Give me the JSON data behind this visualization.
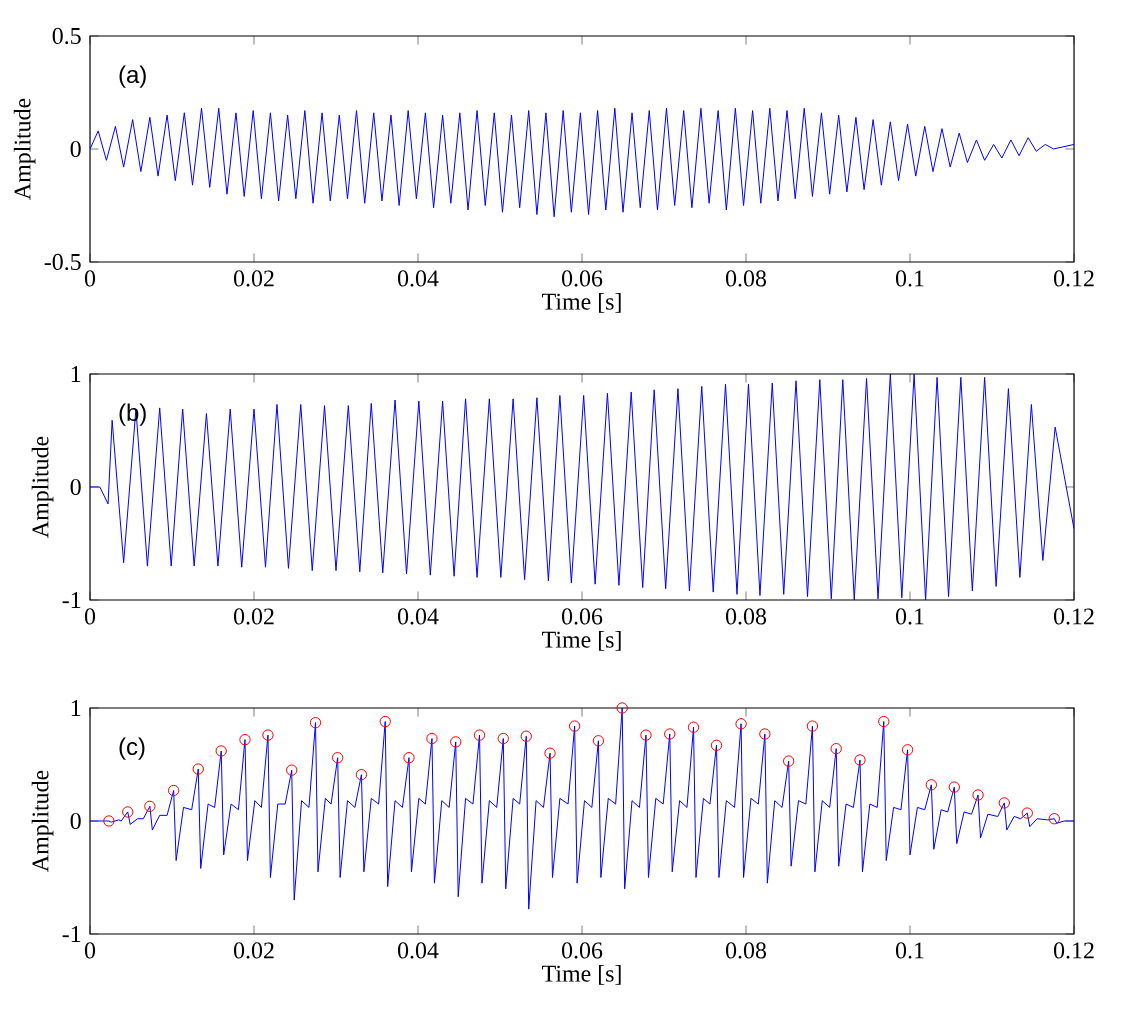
{
  "chart_data": [
    {
      "type": "line",
      "xlabel": "Time [s]",
      "ylabel": "Amplitude",
      "annotations": [
        "(a)"
      ],
      "xlim": [
        0,
        0.12
      ],
      "xticks": [
        0,
        0.02,
        0.04,
        0.06,
        0.08,
        0.1,
        0.12
      ],
      "ylim": [
        -0.5,
        0.5
      ],
      "yticks": [
        -0.5,
        0,
        0.5
      ],
      "series": [
        {
          "color": "#0000ff",
          "x": [
            0,
            0.001,
            0.002,
            0.0031,
            0.0041,
            0.0052,
            0.0062,
            0.0073,
            0.0083,
            0.0094,
            0.0104,
            0.0115,
            0.0125,
            0.0136,
            0.0146,
            0.0157,
            0.0167,
            0.0178,
            0.0188,
            0.0199,
            0.0209,
            0.022,
            0.023,
            0.0241,
            0.0251,
            0.0262,
            0.0272,
            0.0283,
            0.0293,
            0.0304,
            0.0314,
            0.0325,
            0.0335,
            0.0346,
            0.0356,
            0.0367,
            0.0377,
            0.0388,
            0.0398,
            0.0409,
            0.0419,
            0.043,
            0.044,
            0.0451,
            0.0461,
            0.0472,
            0.0482,
            0.0493,
            0.0503,
            0.0514,
            0.0524,
            0.0535,
            0.0545,
            0.0556,
            0.0566,
            0.0577,
            0.0587,
            0.0598,
            0.0608,
            0.0619,
            0.0629,
            0.064,
            0.065,
            0.0661,
            0.0671,
            0.0682,
            0.0692,
            0.0703,
            0.0713,
            0.0724,
            0.0734,
            0.0745,
            0.0755,
            0.0766,
            0.0776,
            0.0787,
            0.0797,
            0.0808,
            0.0818,
            0.0829,
            0.0839,
            0.085,
            0.086,
            0.0871,
            0.0881,
            0.0892,
            0.0902,
            0.0913,
            0.0923,
            0.0934,
            0.0944,
            0.0955,
            0.0965,
            0.0976,
            0.0986,
            0.0997,
            0.1007,
            0.1018,
            0.1028,
            0.1039,
            0.1049,
            0.106,
            0.107,
            0.1081,
            0.1091,
            0.1102,
            0.1112,
            0.1123,
            0.1133,
            0.1144,
            0.1154,
            0.1165,
            0.1175,
            0.12
          ],
          "values": [
            0,
            0.08,
            -0.05,
            0.1,
            -0.08,
            0.13,
            -0.1,
            0.14,
            -0.12,
            0.15,
            -0.14,
            0.16,
            -0.16,
            0.18,
            -0.17,
            0.18,
            -0.2,
            0.16,
            -0.21,
            0.17,
            -0.22,
            0.16,
            -0.23,
            0.15,
            -0.22,
            0.17,
            -0.24,
            0.16,
            -0.23,
            0.15,
            -0.22,
            0.17,
            -0.24,
            0.16,
            -0.23,
            0.15,
            -0.25,
            0.17,
            -0.22,
            0.16,
            -0.26,
            0.15,
            -0.24,
            0.16,
            -0.27,
            0.17,
            -0.25,
            0.16,
            -0.28,
            0.15,
            -0.26,
            0.17,
            -0.29,
            0.16,
            -0.3,
            0.17,
            -0.28,
            0.16,
            -0.29,
            0.17,
            -0.27,
            0.18,
            -0.28,
            0.16,
            -0.26,
            0.17,
            -0.27,
            0.18,
            -0.25,
            0.17,
            -0.26,
            0.18,
            -0.24,
            0.17,
            -0.27,
            0.18,
            -0.25,
            0.17,
            -0.24,
            0.18,
            -0.23,
            0.17,
            -0.22,
            0.18,
            -0.21,
            0.16,
            -0.2,
            0.15,
            -0.19,
            0.14,
            -0.18,
            0.13,
            -0.16,
            0.12,
            -0.14,
            0.11,
            -0.12,
            0.1,
            -0.1,
            0.09,
            -0.08,
            0.07,
            -0.06,
            0.04,
            -0.05,
            0.02,
            -0.04,
            0.04,
            -0.03,
            0.05,
            -0.01,
            0.02,
            0.0,
            0.02
          ]
        }
      ]
    },
    {
      "type": "line",
      "xlabel": "Time [s]",
      "ylabel": "Amplitude",
      "annotations": [
        "(b)"
      ],
      "xlim": [
        0,
        0.12
      ],
      "xticks": [
        0,
        0.02,
        0.04,
        0.06,
        0.08,
        0.1,
        0.12
      ],
      "ylim": [
        -1,
        1
      ],
      "yticks": [
        -1,
        0,
        1
      ],
      "series": [
        {
          "color": "#0000ff",
          "x": [
            0,
            0.0012,
            0.0022,
            0.0027,
            0.0041,
            0.0056,
            0.007,
            0.0085,
            0.0099,
            0.0113,
            0.0127,
            0.0142,
            0.0156,
            0.0171,
            0.0185,
            0.02,
            0.0214,
            0.0228,
            0.0242,
            0.0257,
            0.0271,
            0.0286,
            0.03,
            0.0315,
            0.0329,
            0.0343,
            0.0357,
            0.0372,
            0.0386,
            0.0401,
            0.0415,
            0.043,
            0.0444,
            0.0458,
            0.0472,
            0.0487,
            0.0501,
            0.0516,
            0.053,
            0.0545,
            0.0559,
            0.0573,
            0.0587,
            0.0602,
            0.0616,
            0.0631,
            0.0645,
            0.066,
            0.0674,
            0.0688,
            0.0702,
            0.0717,
            0.0731,
            0.0746,
            0.076,
            0.0775,
            0.0789,
            0.0803,
            0.0817,
            0.0832,
            0.0846,
            0.0861,
            0.0875,
            0.089,
            0.0904,
            0.0918,
            0.0932,
            0.0947,
            0.0961,
            0.0976,
            0.099,
            0.1005,
            0.1019,
            0.1033,
            0.1047,
            0.1062,
            0.1076,
            0.1091,
            0.1105,
            0.112,
            0.1134,
            0.1148,
            0.1162,
            0.1177,
            0.12
          ],
          "values": [
            0,
            0,
            -0.15,
            0.59,
            -0.67,
            0.69,
            -0.7,
            0.7,
            -0.7,
            0.69,
            -0.7,
            0.65,
            -0.7,
            0.69,
            -0.71,
            0.69,
            -0.71,
            0.73,
            -0.72,
            0.73,
            -0.74,
            0.72,
            -0.74,
            0.72,
            -0.75,
            0.74,
            -0.76,
            0.77,
            -0.77,
            0.76,
            -0.78,
            0.76,
            -0.79,
            0.78,
            -0.8,
            0.78,
            -0.8,
            0.78,
            -0.82,
            0.79,
            -0.83,
            0.81,
            -0.85,
            0.81,
            -0.86,
            0.83,
            -0.87,
            0.84,
            -0.89,
            0.86,
            -0.9,
            0.87,
            -0.92,
            0.89,
            -0.93,
            0.91,
            -0.95,
            0.91,
            -0.96,
            0.92,
            -0.95,
            0.94,
            -0.97,
            0.95,
            -0.99,
            0.95,
            -1.0,
            0.96,
            -0.99,
            1.0,
            -0.98,
            1.0,
            -1.0,
            0.97,
            -0.97,
            0.97,
            -0.92,
            0.97,
            -0.88,
            0.87,
            -0.8,
            0.73,
            -0.65,
            0.53,
            -0.37
          ]
        }
      ]
    },
    {
      "type": "line",
      "xlabel": "Time [s]",
      "ylabel": "Amplitude",
      "annotations": [
        "(c)"
      ],
      "xlim": [
        0,
        0.12
      ],
      "xticks": [
        0,
        0.02,
        0.04,
        0.06,
        0.08,
        0.1,
        0.12
      ],
      "ylim": [
        -1,
        1
      ],
      "yticks": [
        -1,
        0,
        1
      ],
      "series": [
        {
          "color": "#0000ff",
          "x": [
            0,
            0.0015,
            0.0023,
            0.0026,
            0.0035,
            0.0038,
            0.0046,
            0.0049,
            0.0058,
            0.0065,
            0.0073,
            0.0076,
            0.0085,
            0.0094,
            0.0102,
            0.0105,
            0.0114,
            0.0124,
            0.0132,
            0.0135,
            0.0144,
            0.0152,
            0.016,
            0.0163,
            0.0172,
            0.0181,
            0.0189,
            0.0192,
            0.0201,
            0.0209,
            0.0217,
            0.022,
            0.0229,
            0.0238,
            0.0246,
            0.0249,
            0.0258,
            0.0267,
            0.0275,
            0.0278,
            0.0287,
            0.0294,
            0.0302,
            0.0305,
            0.0314,
            0.0323,
            0.0331,
            0.0334,
            0.0343,
            0.0352,
            0.036,
            0.0363,
            0.0372,
            0.0381,
            0.0389,
            0.0392,
            0.0401,
            0.0409,
            0.0417,
            0.042,
            0.0429,
            0.0438,
            0.0446,
            0.0449,
            0.0458,
            0.0467,
            0.0475,
            0.0478,
            0.0487,
            0.0496,
            0.0504,
            0.0507,
            0.0516,
            0.0524,
            0.0532,
            0.0535,
            0.0544,
            0.0553,
            0.0561,
            0.0564,
            0.0573,
            0.0583,
            0.0591,
            0.0594,
            0.0603,
            0.0612,
            0.062,
            0.0623,
            0.0632,
            0.0641,
            0.0649,
            0.0652,
            0.0661,
            0.067,
            0.0678,
            0.0681,
            0.069,
            0.0699,
            0.0707,
            0.071,
            0.0719,
            0.0728,
            0.0736,
            0.0739,
            0.0748,
            0.0756,
            0.0764,
            0.0767,
            0.0776,
            0.0786,
            0.0794,
            0.0797,
            0.0806,
            0.0815,
            0.0823,
            0.0826,
            0.0835,
            0.0844,
            0.0852,
            0.0855,
            0.0864,
            0.0873,
            0.0881,
            0.0884,
            0.0893,
            0.0902,
            0.091,
            0.0913,
            0.0922,
            0.0931,
            0.0939,
            0.0942,
            0.0951,
            0.096,
            0.0968,
            0.0971,
            0.098,
            0.0989,
            0.0997,
            0.1,
            0.1009,
            0.1018,
            0.1026,
            0.1029,
            0.1038,
            0.1046,
            0.1054,
            0.1057,
            0.1066,
            0.1075,
            0.1083,
            0.1086,
            0.1095,
            0.1107,
            0.1115,
            0.1118,
            0.1127,
            0.1135,
            0.1143,
            0.1146,
            0.1155,
            0.1168,
            0.1176,
            0.1179,
            0.1188,
            0.12
          ],
          "values": [
            0,
            0,
            0,
            -0.01,
            0.01,
            0,
            0.08,
            -0.03,
            0.02,
            0.02,
            0.13,
            -0.08,
            0.05,
            0.05,
            0.27,
            -0.35,
            0.12,
            0.1,
            0.46,
            -0.42,
            0.15,
            0.12,
            0.62,
            -0.3,
            0.15,
            0.1,
            0.72,
            -0.35,
            0.18,
            0.12,
            0.76,
            -0.5,
            0.15,
            0.15,
            0.45,
            -0.7,
            0.18,
            0.12,
            0.87,
            -0.45,
            0.2,
            0.15,
            0.56,
            -0.5,
            0.18,
            0.12,
            0.41,
            -0.45,
            0.2,
            0.15,
            0.88,
            -0.58,
            0.18,
            0.12,
            0.56,
            -0.45,
            0.2,
            0.15,
            0.73,
            -0.55,
            0.18,
            0.12,
            0.7,
            -0.67,
            0.2,
            0.15,
            0.76,
            -0.55,
            0.18,
            0.12,
            0.73,
            -0.6,
            0.2,
            0.15,
            0.75,
            -0.78,
            0.18,
            0.12,
            0.6,
            -0.5,
            0.2,
            0.15,
            0.84,
            -0.55,
            0.18,
            0.12,
            0.71,
            -0.5,
            0.2,
            0.15,
            1.0,
            -0.6,
            0.18,
            0.12,
            0.76,
            -0.5,
            0.2,
            0.15,
            0.77,
            -0.45,
            0.18,
            0.12,
            0.83,
            -0.5,
            0.2,
            0.15,
            0.67,
            -0.5,
            0.18,
            0.12,
            0.86,
            -0.5,
            0.2,
            0.15,
            0.77,
            -0.55,
            0.18,
            0.12,
            0.53,
            -0.4,
            0.18,
            0.15,
            0.84,
            -0.45,
            0.18,
            0.12,
            0.64,
            -0.4,
            0.15,
            0.12,
            0.54,
            -0.45,
            0.15,
            0.12,
            0.88,
            -0.35,
            0.12,
            0.1,
            0.63,
            -0.3,
            0.12,
            0.1,
            0.32,
            -0.25,
            0.1,
            0.08,
            0.3,
            -0.2,
            0.08,
            0.06,
            0.23,
            -0.15,
            0.06,
            0.04,
            0.16,
            -0.08,
            0.04,
            0.02,
            0.07,
            -0.05,
            0.02,
            0.01,
            0.02,
            -0.02,
            0,
            0
          ]
        },
        {
          "type": "scatter",
          "color": "#ff0000",
          "marker": "circle",
          "x": [
            0.0023,
            0.0046,
            0.0073,
            0.0102,
            0.0132,
            0.016,
            0.0189,
            0.0217,
            0.0246,
            0.0275,
            0.0302,
            0.0331,
            0.036,
            0.0389,
            0.0417,
            0.0446,
            0.0475,
            0.0504,
            0.0532,
            0.0561,
            0.0591,
            0.062,
            0.0649,
            0.0678,
            0.0707,
            0.0736,
            0.0764,
            0.0794,
            0.0823,
            0.0852,
            0.0881,
            0.091,
            0.0939,
            0.0968,
            0.0997,
            0.1026,
            0.1054,
            0.1083,
            0.1115,
            0.1143,
            0.1176
          ],
          "values": [
            0,
            0.08,
            0.13,
            0.27,
            0.46,
            0.62,
            0.72,
            0.76,
            0.45,
            0.87,
            0.56,
            0.41,
            0.88,
            0.56,
            0.73,
            0.7,
            0.76,
            0.73,
            0.75,
            0.6,
            0.84,
            0.71,
            1.0,
            0.76,
            0.77,
            0.83,
            0.67,
            0.86,
            0.77,
            0.53,
            0.84,
            0.64,
            0.54,
            0.88,
            0.63,
            0.32,
            0.3,
            0.23,
            0.16,
            0.07,
            0.02
          ]
        }
      ]
    }
  ]
}
